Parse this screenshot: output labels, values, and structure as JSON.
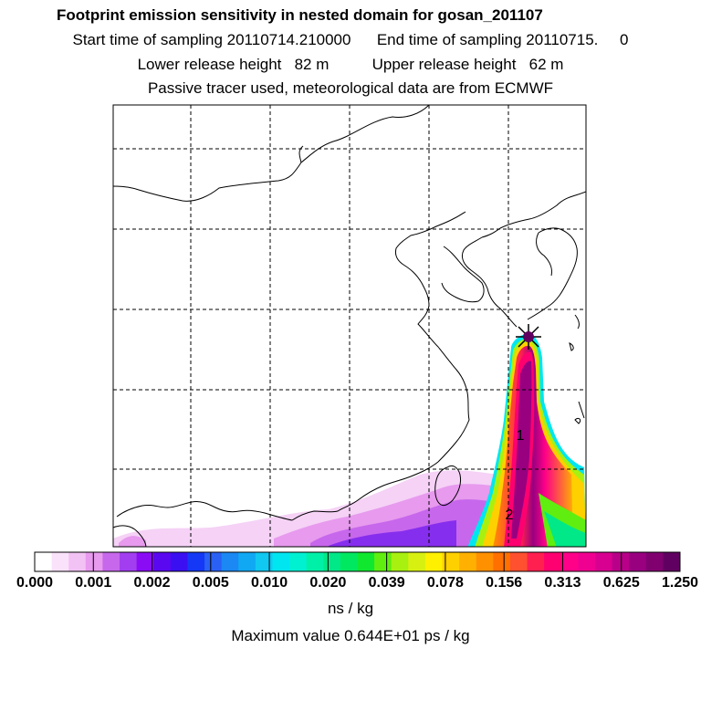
{
  "header": {
    "title": "Footprint emission sensitivity in nested domain for gosan_201107",
    "start_label": "Start time of sampling",
    "start_value": "20110714.210000",
    "end_label": "End time of sampling",
    "end_value": "20110715.",
    "end_value2": "0",
    "lower_label": "Lower release height",
    "lower_value": "82 m",
    "upper_label": "Upper release height",
    "upper_value": "62 m",
    "tracer_note": "Passive tracer used, meteorological data are from ECMWF"
  },
  "map": {
    "labels": [
      "1",
      "2"
    ]
  },
  "legend": {
    "ticks": [
      "0.000",
      "0.001",
      "0.002",
      "0.005",
      "0.010",
      "0.020",
      "0.039",
      "0.078",
      "0.156",
      "0.313",
      "0.625",
      "1.250"
    ],
    "colors": [
      "#ffffff",
      "#fbe2fb",
      "#f2c2f4",
      "#e79aee",
      "#c767ec",
      "#a23ef0",
      "#8a0cf5",
      "#5a08f0",
      "#3a10f2",
      "#1438f5",
      "#2a60f4",
      "#1b88f3",
      "#10a8f3",
      "#10c8f0",
      "#00e6f0",
      "#00f0d2",
      "#00f0a8",
      "#00e888",
      "#00e860",
      "#10e830",
      "#60ee10",
      "#a8f010",
      "#d8f010",
      "#fff000",
      "#ffd000",
      "#ffb000",
      "#ff9000",
      "#ff7000",
      "#ff5030",
      "#ff2050",
      "#ff0070",
      "#ff0088",
      "#f00090",
      "#d80090",
      "#b80088",
      "#980080",
      "#800070",
      "#600060"
    ],
    "units": "ns / kg",
    "max_value_text": "Maximum value  0.644E+01 ps / kg"
  }
}
